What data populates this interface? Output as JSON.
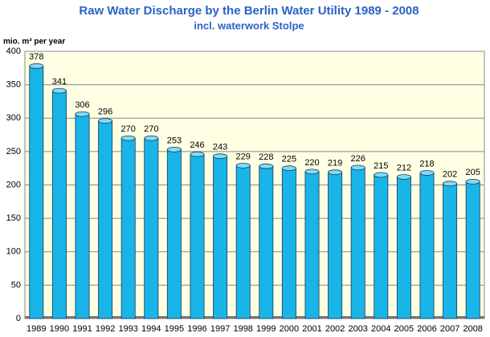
{
  "chart_data": {
    "type": "bar",
    "title": "Raw Water Discharge by the Berlin Water Utility 1989 - 2008",
    "subtitle": "incl. waterwork Stolpe",
    "y_label": "mio. m³ per year",
    "categories": [
      "1989",
      "1990",
      "1991",
      "1992",
      "1993",
      "1994",
      "1995",
      "1996",
      "1997",
      "1998",
      "1999",
      "2000",
      "2001",
      "2002",
      "2003",
      "2004",
      "2005",
      "2006",
      "2007",
      "2008"
    ],
    "values": [
      378,
      341,
      306,
      296,
      270,
      270,
      253,
      246,
      243,
      229,
      228,
      225,
      220,
      219,
      226,
      215,
      212,
      218,
      202,
      205
    ],
    "color": "#19b4e8",
    "ylim": [
      0,
      400
    ],
    "yticks": [
      0,
      50,
      100,
      150,
      200,
      250,
      300,
      350,
      400
    ],
    "grid": true
  }
}
